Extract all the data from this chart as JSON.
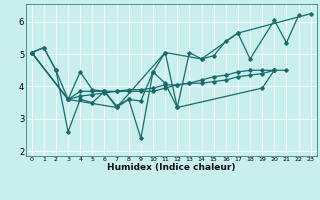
{
  "xlabel": "Humidex (Indice chaleur)",
  "bg_color": "#c8eeee",
  "grid_color": "#b0dddd",
  "line_color": "#1a6b6b",
  "xlim": [
    -0.5,
    23.5
  ],
  "ylim": [
    1.85,
    6.55
  ],
  "xticks": [
    0,
    1,
    2,
    3,
    4,
    5,
    6,
    7,
    8,
    9,
    10,
    11,
    12,
    13,
    14,
    15,
    16,
    17,
    18,
    19,
    20,
    21,
    22,
    23
  ],
  "yticks": [
    2,
    3,
    4,
    5,
    6
  ],
  "series": [
    [
      5.05,
      5.2,
      4.5,
      3.6,
      4.45,
      3.9,
      3.85,
      3.4,
      3.6,
      3.55,
      4.45,
      4.1,
      3.35,
      null,
      null,
      null,
      null,
      null,
      null,
      3.95,
      4.5,
      null,
      null,
      null
    ],
    [
      5.05,
      5.2,
      4.5,
      2.6,
      3.6,
      3.5,
      3.85,
      3.35,
      3.6,
      2.4,
      4.45,
      5.05,
      3.35,
      5.05,
      4.85,
      4.95,
      5.4,
      5.65,
      4.85,
      null,
      6.05,
      5.35,
      6.2,
      null
    ],
    [
      5.05,
      null,
      null,
      3.6,
      null,
      null,
      null,
      3.35,
      null,
      null,
      null,
      5.05,
      null,
      null,
      4.85,
      null,
      null,
      5.65,
      null,
      null,
      null,
      null,
      null,
      6.25
    ],
    [
      5.05,
      null,
      null,
      3.6,
      3.85,
      3.85,
      3.85,
      3.85,
      3.85,
      3.85,
      3.85,
      3.95,
      4.05,
      4.1,
      4.2,
      4.3,
      4.35,
      4.45,
      4.5,
      4.5,
      4.5,
      4.5,
      null,
      null
    ],
    [
      5.05,
      null,
      null,
      3.6,
      3.7,
      3.75,
      3.8,
      3.85,
      3.9,
      3.9,
      3.95,
      4.05,
      4.05,
      4.1,
      4.1,
      4.15,
      4.2,
      4.3,
      4.35,
      4.4,
      4.5,
      null,
      null,
      null
    ]
  ]
}
